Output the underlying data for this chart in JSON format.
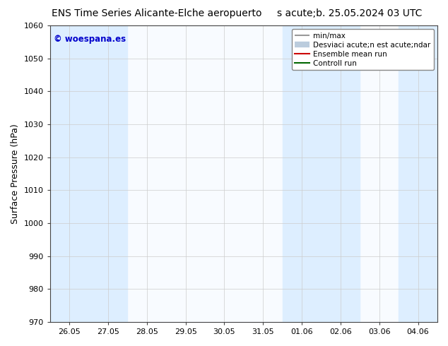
{
  "title_left": "ENS Time Series Alicante-Elche aeropuerto",
  "title_right": "s acute;b. 25.05.2024 03 UTC",
  "ylabel": "Surface Pressure (hPa)",
  "ylim": [
    970,
    1060
  ],
  "yticks": [
    970,
    980,
    990,
    1000,
    1010,
    1020,
    1030,
    1040,
    1050,
    1060
  ],
  "xtick_labels": [
    "26.05",
    "27.05",
    "28.05",
    "29.05",
    "30.05",
    "31.05",
    "01.06",
    "02.06",
    "03.06",
    "04.06"
  ],
  "xtick_positions": [
    0,
    1,
    2,
    3,
    4,
    5,
    6,
    7,
    8,
    9
  ],
  "shaded_bands": [
    {
      "xmin": -0.5,
      "xmax": 0.5
    },
    {
      "xmin": 0.5,
      "xmax": 1.5
    },
    {
      "xmin": 5.5,
      "xmax": 6.5
    },
    {
      "xmin": 6.5,
      "xmax": 7.5
    },
    {
      "xmin": 8.5,
      "xmax": 9.5
    }
  ],
  "shaded_color": "#ddeeff",
  "background_color": "#ffffff",
  "plot_bg_color": "#f8fbff",
  "watermark": "© woespana.es",
  "watermark_color": "#0000cc",
  "legend_items": [
    {
      "label": "min/max",
      "color": "#999999",
      "lw": 1.5
    },
    {
      "label": "Desviaci acute;n est acute;ndar",
      "color": "#bbccdd",
      "lw": 6
    },
    {
      "label": "Ensemble mean run",
      "color": "#cc0000",
      "lw": 1.5
    },
    {
      "label": "Controll run",
      "color": "#006600",
      "lw": 1.5
    }
  ],
  "title_fontsize": 10,
  "tick_fontsize": 8,
  "ylabel_fontsize": 9,
  "legend_fontsize": 7.5
}
